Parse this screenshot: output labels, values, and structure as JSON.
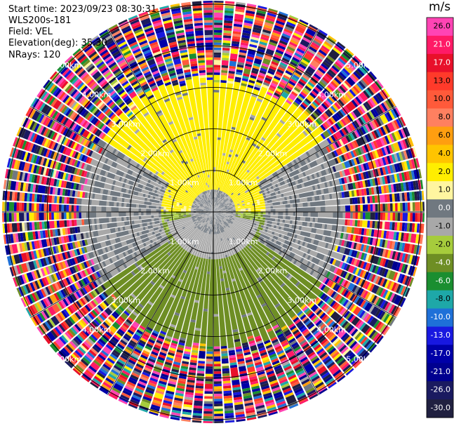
{
  "info": {
    "start_time": "Start time: 2023/09/23 08:30:31",
    "instrument": "WLS200s-181",
    "field": "Field: VEL",
    "elevation": "Elevation(deg): 35.30",
    "nrays": "NRays: 120"
  },
  "colorbar": {
    "unit": "m/s",
    "ticks": [
      "26.0",
      "21.0",
      "17.0",
      "13.0",
      "10.0",
      "8.0",
      "6.0",
      "4.0",
      "2.0",
      "1.0",
      "0.0",
      "-1.0",
      "-2.0",
      "-4.0",
      "-6.0",
      "-8.0",
      "-10.0",
      "-13.0",
      "-17.0",
      "-21.0",
      "-26.0",
      "-30.0"
    ],
    "colors": [
      "#ff44b4",
      "#ff1a66",
      "#e8102a",
      "#ff3a2a",
      "#ff5a3a",
      "#ff8060",
      "#ff9e10",
      "#ffc400",
      "#ffee00",
      "#fff5a0",
      "#707880",
      "#a8a8a8",
      "#a6cc3c",
      "#6e8e24",
      "#1a8e30",
      "#1ea8a8",
      "#1e70d8",
      "#1818e0",
      "#0000a8",
      "#000090",
      "#1a1a60",
      "#202040"
    ]
  },
  "chart_data": {
    "type": "heatmap",
    "title": "",
    "field": "VEL",
    "units": "m/s",
    "range_rings_km": [
      1.0,
      2.0,
      3.0,
      4.0,
      5.0
    ],
    "range_labels": [
      "1.00km",
      "2.00km",
      "3.00km",
      "4.00km",
      "5.00km"
    ],
    "nrays": 120,
    "clim": [
      -30.0,
      26.0
    ],
    "colormap_levels": [
      -30.0,
      -26.0,
      -21.0,
      -17.0,
      -13.0,
      -10.0,
      -8.0,
      -6.0,
      -4.0,
      -2.0,
      -1.0,
      0.0,
      1.0,
      2.0,
      4.0,
      6.0,
      8.0,
      10.0,
      13.0,
      17.0,
      21.0,
      26.0
    ],
    "pattern": {
      "noise_beyond_km": 3.2,
      "north_half_velocity_ms": 2.0,
      "south_half_velocity_ms": -2.0,
      "near_zero_region": "center and east/west flanks"
    }
  }
}
